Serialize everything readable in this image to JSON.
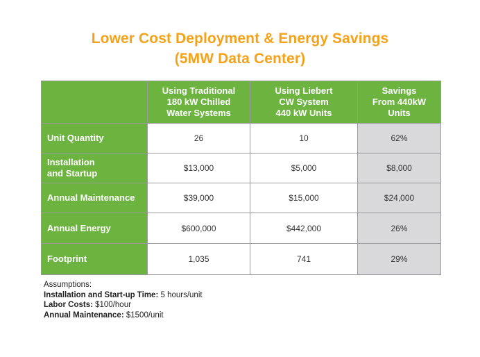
{
  "title": {
    "line1": "Lower Cost Deployment & Energy Savings",
    "line2": "(5MW Data Center)"
  },
  "table": {
    "headers": [
      "",
      "Using Traditional 180 kW Chilled Water Systems",
      "Using Liebert CW System 440 kW Units",
      "Savings From 440kW Units"
    ],
    "header_lines": {
      "col1": [
        "Using Traditional",
        "180 kW Chilled",
        "Water Systems"
      ],
      "col2": [
        "Using Liebert",
        "CW System",
        "440 kW Units"
      ],
      "col3": [
        "Savings",
        "From 440kW",
        "Units"
      ]
    },
    "rows": [
      {
        "label_lines": [
          "Unit Quantity"
        ],
        "traditional": "26",
        "liebert": "10",
        "savings": "62%"
      },
      {
        "label_lines": [
          "Installation",
          "and Startup"
        ],
        "traditional": "$13,000",
        "liebert": "$5,000",
        "savings": "$8,000"
      },
      {
        "label_lines": [
          "Annual Maintenance"
        ],
        "traditional": "$39,000",
        "liebert": "$15,000",
        "savings": "$24,000"
      },
      {
        "label_lines": [
          "Annual Energy"
        ],
        "traditional": "$600,000",
        "liebert": "$442,000",
        "savings": "26%"
      },
      {
        "label_lines": [
          "Footprint"
        ],
        "traditional": "1,035",
        "liebert": "741",
        "savings": "29%"
      }
    ]
  },
  "assumptions": {
    "heading": "Assumptions:",
    "items": [
      {
        "label": "Installation and Start-up Time:",
        "value": "5 hours/unit"
      },
      {
        "label": "Labor Costs:",
        "value": "$100/hour"
      },
      {
        "label": "Annual Maintenance:",
        "value": "$1500/unit"
      }
    ]
  },
  "colors": {
    "title_orange": "#f5a21b",
    "header_green": "#6cb33f",
    "savings_gray": "#d9d9db"
  }
}
